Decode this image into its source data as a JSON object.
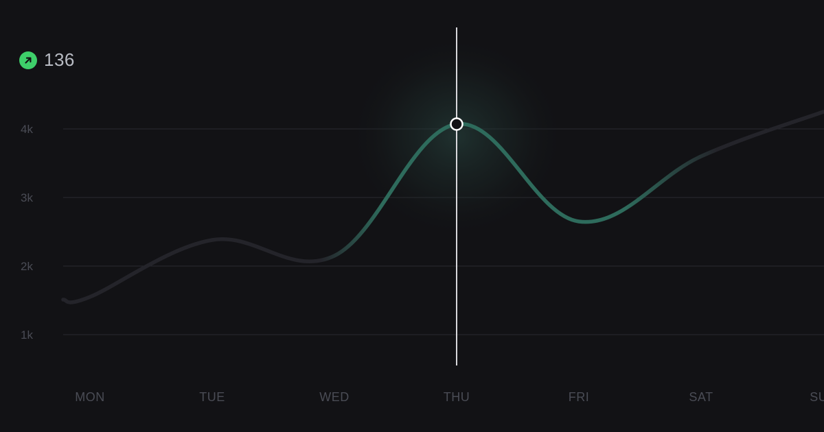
{
  "badge": {
    "value": "136",
    "icon": "arrow-up-right-icon",
    "color": "#3ecf6a"
  },
  "chart_data": {
    "type": "line",
    "title": "",
    "xlabel": "",
    "ylabel": "",
    "categories": [
      "MON",
      "TUE",
      "WED",
      "THU",
      "FRI",
      "SAT",
      "SUN"
    ],
    "series": [
      {
        "values": [
          1550,
          2380,
          2150,
          4070,
          2650,
          3600,
          4250
        ]
      }
    ],
    "y_ticks": [
      {
        "value": 1000,
        "label": "1k"
      },
      {
        "value": 2000,
        "label": "2k"
      },
      {
        "value": 3000,
        "label": "3k"
      },
      {
        "value": 4000,
        "label": "4k"
      }
    ],
    "ylim": [
      500,
      5000
    ],
    "grid": true,
    "highlighted_category": "THU",
    "colors": {
      "background": "#121215",
      "grid": "#2a2b31",
      "line_active": "#2e6b5c",
      "line_faded": "#24242a",
      "cursor": "#d8d8dc",
      "tick_text": "#4a4c55"
    }
  }
}
